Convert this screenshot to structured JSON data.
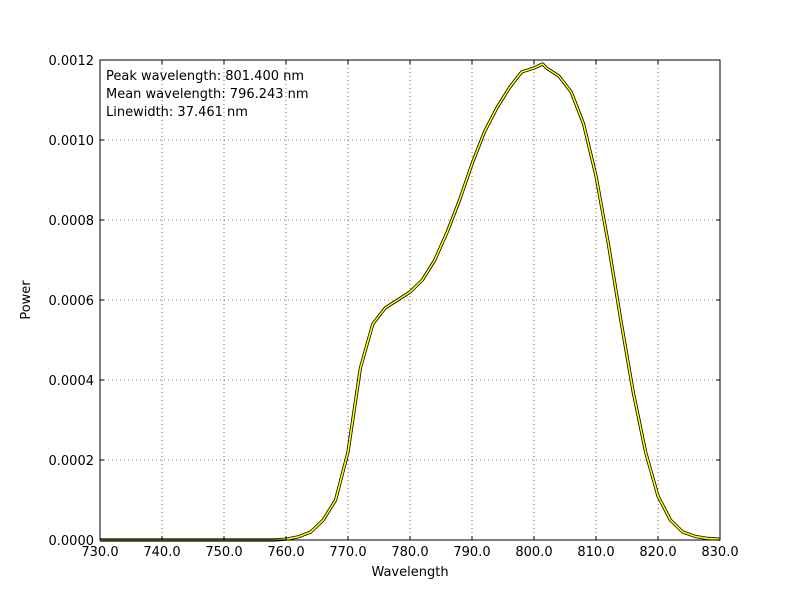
{
  "chart_data": {
    "type": "line",
    "title": "",
    "xlabel": "Wavelength",
    "ylabel": "Power",
    "xlim": [
      730,
      830
    ],
    "ylim": [
      0,
      0.0012
    ],
    "grid": true,
    "line_color": "#ffff00",
    "edge_color": "#000000",
    "x_ticks": [
      730,
      740,
      750,
      760,
      770,
      780,
      790,
      800,
      810,
      820,
      830
    ],
    "x_tick_labels": [
      "730.0",
      "740.0",
      "750.0",
      "760.0",
      "770.0",
      "780.0",
      "790.0",
      "800.0",
      "810.0",
      "820.0",
      "830.0"
    ],
    "y_ticks": [
      0,
      0.0002,
      0.0004,
      0.0006,
      0.0008,
      0.001,
      0.0012
    ],
    "y_tick_labels": [
      "0.0000",
      "0.0002",
      "0.0004",
      "0.0006",
      "0.0008",
      "0.0010",
      "0.0012"
    ],
    "annotations": [
      "Peak wavelength: 801.400 nm",
      "Mean wavelength: 796.243 nm",
      "Linewidth: 37.461 nm"
    ],
    "series": [
      {
        "x": [
          730,
          750,
          758,
          760,
          762,
          764,
          766,
          768,
          770,
          772,
          774,
          776,
          778,
          780,
          782,
          784,
          786,
          788,
          790,
          792,
          794,
          796,
          798,
          800,
          801.4,
          802,
          804,
          806,
          808,
          810,
          812,
          814,
          816,
          818,
          820,
          822,
          824,
          826,
          828,
          830
        ],
        "y": [
          0,
          0,
          0,
          2e-06,
          8e-06,
          2e-05,
          5e-05,
          0.0001,
          0.00022,
          0.00043,
          0.00054,
          0.00058,
          0.0006,
          0.00062,
          0.00065,
          0.0007,
          0.00077,
          0.00085,
          0.00094,
          0.00102,
          0.00108,
          0.00113,
          0.00117,
          0.00118,
          0.00119,
          0.00118,
          0.00116,
          0.00112,
          0.00104,
          0.00091,
          0.00074,
          0.00055,
          0.00037,
          0.00022,
          0.00011,
          5e-05,
          2e-05,
          9e-06,
          4e-06,
          2e-06
        ]
      }
    ]
  }
}
